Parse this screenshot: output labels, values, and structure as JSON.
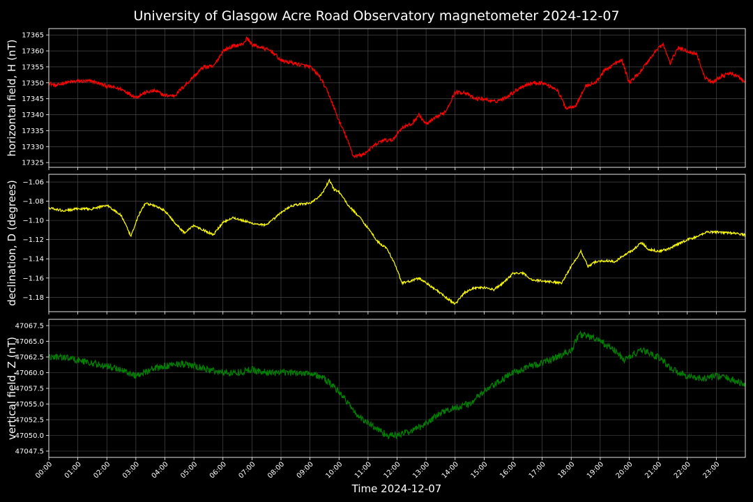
{
  "chart_data": {
    "type": "line",
    "title": "University of Glasgow Acre Road Observatory magnetometer 2024-12-07",
    "xlabel": "Time 2024-12-07",
    "x_ticks": [
      "00:00",
      "01:00",
      "02:00",
      "03:00",
      "04:00",
      "05:00",
      "06:00",
      "07:00",
      "08:00",
      "09:00",
      "10:00",
      "11:00",
      "12:00",
      "13:00",
      "14:00",
      "15:00",
      "16:00",
      "17:00",
      "18:00",
      "19:00",
      "20:00",
      "21:00",
      "22:00",
      "23:00"
    ],
    "xlim": [
      "00:00",
      "24:00"
    ],
    "grid": true,
    "panels": [
      {
        "ylabel": "horizontal field, H (nT)",
        "color": "#ff0000",
        "ylim": [
          17323.5,
          17367
        ],
        "yticks": [
          17325,
          17330,
          17335,
          17340,
          17345,
          17350,
          17355,
          17360,
          17365
        ],
        "tick_labels": [
          "17325",
          "17330",
          "17335",
          "17340",
          "17345",
          "17350",
          "17355",
          "17360",
          "17365"
        ],
        "noise": 0.6,
        "series": [
          {
            "x": "00:00",
            "y": 17350
          },
          {
            "x": "00:15",
            "y": 17349
          },
          {
            "x": "00:30",
            "y": 17350
          },
          {
            "x": "01:00",
            "y": 17350.5
          },
          {
            "x": "01:30",
            "y": 17350.5
          },
          {
            "x": "02:00",
            "y": 17349
          },
          {
            "x": "02:30",
            "y": 17348
          },
          {
            "x": "03:00",
            "y": 17345.5
          },
          {
            "x": "03:20",
            "y": 17347
          },
          {
            "x": "03:40",
            "y": 17347.5
          },
          {
            "x": "04:00",
            "y": 17346
          },
          {
            "x": "04:20",
            "y": 17346
          },
          {
            "x": "04:40",
            "y": 17349
          },
          {
            "x": "05:00",
            "y": 17352
          },
          {
            "x": "05:20",
            "y": 17355
          },
          {
            "x": "05:40",
            "y": 17355
          },
          {
            "x": "06:00",
            "y": 17360
          },
          {
            "x": "06:20",
            "y": 17361.5
          },
          {
            "x": "06:40",
            "y": 17362
          },
          {
            "x": "06:50",
            "y": 17364
          },
          {
            "x": "07:00",
            "y": 17362
          },
          {
            "x": "07:20",
            "y": 17361
          },
          {
            "x": "07:40",
            "y": 17360
          },
          {
            "x": "08:00",
            "y": 17357
          },
          {
            "x": "08:30",
            "y": 17356
          },
          {
            "x": "09:00",
            "y": 17355
          },
          {
            "x": "09:20",
            "y": 17352
          },
          {
            "x": "09:40",
            "y": 17346
          },
          {
            "x": "10:00",
            "y": 17338
          },
          {
            "x": "10:15",
            "y": 17333
          },
          {
            "x": "10:30",
            "y": 17327
          },
          {
            "x": "10:50",
            "y": 17327.5
          },
          {
            "x": "11:10",
            "y": 17330
          },
          {
            "x": "11:30",
            "y": 17332
          },
          {
            "x": "11:50",
            "y": 17332
          },
          {
            "x": "12:10",
            "y": 17336
          },
          {
            "x": "12:30",
            "y": 17337
          },
          {
            "x": "12:45",
            "y": 17340
          },
          {
            "x": "13:00",
            "y": 17337
          },
          {
            "x": "13:20",
            "y": 17339
          },
          {
            "x": "13:40",
            "y": 17341
          },
          {
            "x": "14:00",
            "y": 17347
          },
          {
            "x": "14:20",
            "y": 17347
          },
          {
            "x": "14:40",
            "y": 17345
          },
          {
            "x": "15:00",
            "y": 17345
          },
          {
            "x": "15:20",
            "y": 17344
          },
          {
            "x": "15:40",
            "y": 17345
          },
          {
            "x": "16:00",
            "y": 17347
          },
          {
            "x": "16:20",
            "y": 17349
          },
          {
            "x": "16:40",
            "y": 17350
          },
          {
            "x": "17:00",
            "y": 17350
          },
          {
            "x": "17:30",
            "y": 17348
          },
          {
            "x": "17:50",
            "y": 17342
          },
          {
            "x": "18:10",
            "y": 17343
          },
          {
            "x": "18:30",
            "y": 17349
          },
          {
            "x": "18:50",
            "y": 17350
          },
          {
            "x": "19:10",
            "y": 17354
          },
          {
            "x": "19:30",
            "y": 17356
          },
          {
            "x": "19:45",
            "y": 17357
          },
          {
            "x": "20:00",
            "y": 17350
          },
          {
            "x": "20:20",
            "y": 17353
          },
          {
            "x": "20:40",
            "y": 17357
          },
          {
            "x": "21:00",
            "y": 17361
          },
          {
            "x": "21:10",
            "y": 17362
          },
          {
            "x": "21:25",
            "y": 17356
          },
          {
            "x": "21:40",
            "y": 17361
          },
          {
            "x": "22:00",
            "y": 17360
          },
          {
            "x": "22:20",
            "y": 17359
          },
          {
            "x": "22:35",
            "y": 17352
          },
          {
            "x": "22:50",
            "y": 17350
          },
          {
            "x": "23:10",
            "y": 17352
          },
          {
            "x": "23:30",
            "y": 17353
          },
          {
            "x": "23:45",
            "y": 17352
          },
          {
            "x": "24:00",
            "y": 17350
          }
        ]
      },
      {
        "ylabel": "declination, D (degrees)",
        "color": "#ffff00",
        "ylim": [
          -1.195,
          -1.052
        ],
        "yticks": [
          -1.18,
          -1.16,
          -1.14,
          -1.12,
          -1.1,
          -1.08,
          -1.06
        ],
        "tick_labels": [
          "−1.18",
          "−1.16",
          "−1.14",
          "−1.12",
          "−1.10",
          "−1.08",
          "−1.06"
        ],
        "noise": 0.0012,
        "series": [
          {
            "x": "00:00",
            "y": -1.087
          },
          {
            "x": "00:30",
            "y": -1.09
          },
          {
            "x": "01:00",
            "y": -1.088
          },
          {
            "x": "01:30",
            "y": -1.088
          },
          {
            "x": "02:00",
            "y": -1.084
          },
          {
            "x": "02:30",
            "y": -1.095
          },
          {
            "x": "02:50",
            "y": -1.117
          },
          {
            "x": "03:05",
            "y": -1.095
          },
          {
            "x": "03:20",
            "y": -1.082
          },
          {
            "x": "03:40",
            "y": -1.085
          },
          {
            "x": "04:00",
            "y": -1.09
          },
          {
            "x": "04:20",
            "y": -1.102
          },
          {
            "x": "04:40",
            "y": -1.113
          },
          {
            "x": "05:00",
            "y": -1.105
          },
          {
            "x": "05:20",
            "y": -1.11
          },
          {
            "x": "05:40",
            "y": -1.115
          },
          {
            "x": "06:00",
            "y": -1.102
          },
          {
            "x": "06:20",
            "y": -1.097
          },
          {
            "x": "06:40",
            "y": -1.1
          },
          {
            "x": "07:00",
            "y": -1.103
          },
          {
            "x": "07:30",
            "y": -1.105
          },
          {
            "x": "08:00",
            "y": -1.092
          },
          {
            "x": "08:20",
            "y": -1.085
          },
          {
            "x": "08:40",
            "y": -1.083
          },
          {
            "x": "09:00",
            "y": -1.082
          },
          {
            "x": "09:20",
            "y": -1.075
          },
          {
            "x": "09:30",
            "y": -1.068
          },
          {
            "x": "09:40",
            "y": -1.058
          },
          {
            "x": "09:50",
            "y": -1.068
          },
          {
            "x": "10:00",
            "y": -1.07
          },
          {
            "x": "10:20",
            "y": -1.085
          },
          {
            "x": "10:40",
            "y": -1.095
          },
          {
            "x": "11:00",
            "y": -1.108
          },
          {
            "x": "11:20",
            "y": -1.122
          },
          {
            "x": "11:40",
            "y": -1.13
          },
          {
            "x": "11:55",
            "y": -1.145
          },
          {
            "x": "12:10",
            "y": -1.165
          },
          {
            "x": "12:30",
            "y": -1.163
          },
          {
            "x": "12:45",
            "y": -1.16
          },
          {
            "x": "13:00",
            "y": -1.165
          },
          {
            "x": "13:20",
            "y": -1.172
          },
          {
            "x": "13:40",
            "y": -1.18
          },
          {
            "x": "14:00",
            "y": -1.187
          },
          {
            "x": "14:20",
            "y": -1.175
          },
          {
            "x": "14:40",
            "y": -1.17
          },
          {
            "x": "15:00",
            "y": -1.17
          },
          {
            "x": "15:20",
            "y": -1.172
          },
          {
            "x": "15:40",
            "y": -1.165
          },
          {
            "x": "16:00",
            "y": -1.155
          },
          {
            "x": "16:20",
            "y": -1.155
          },
          {
            "x": "16:40",
            "y": -1.162
          },
          {
            "x": "17:00",
            "y": -1.163
          },
          {
            "x": "17:20",
            "y": -1.164
          },
          {
            "x": "17:40",
            "y": -1.165
          },
          {
            "x": "18:00",
            "y": -1.148
          },
          {
            "x": "18:10",
            "y": -1.14
          },
          {
            "x": "18:20",
            "y": -1.132
          },
          {
            "x": "18:35",
            "y": -1.148
          },
          {
            "x": "18:50",
            "y": -1.143
          },
          {
            "x": "19:10",
            "y": -1.142
          },
          {
            "x": "19:30",
            "y": -1.143
          },
          {
            "x": "19:50",
            "y": -1.136
          },
          {
            "x": "20:10",
            "y": -1.13
          },
          {
            "x": "20:25",
            "y": -1.123
          },
          {
            "x": "20:40",
            "y": -1.13
          },
          {
            "x": "21:00",
            "y": -1.132
          },
          {
            "x": "21:20",
            "y": -1.13
          },
          {
            "x": "21:40",
            "y": -1.125
          },
          {
            "x": "22:00",
            "y": -1.12
          },
          {
            "x": "22:20",
            "y": -1.117
          },
          {
            "x": "22:40",
            "y": -1.112
          },
          {
            "x": "23:00",
            "y": -1.112
          },
          {
            "x": "23:30",
            "y": -1.113
          },
          {
            "x": "24:00",
            "y": -1.115
          }
        ]
      },
      {
        "ylabel": "vertical field, Z (nT)",
        "color": "#008000",
        "ylim": [
          47046.5,
          47068.5
        ],
        "yticks": [
          47047.5,
          47050,
          47052.5,
          47055,
          47057.5,
          47060,
          47062.5,
          47065,
          47067.5
        ],
        "tick_labels": [
          "47047.5",
          "47050.0",
          "47052.5",
          "47055.0",
          "47057.5",
          "47060.0",
          "47062.5",
          "47065.0",
          "47067.5"
        ],
        "noise": 0.55,
        "series": [
          {
            "x": "00:00",
            "y": 47062.5
          },
          {
            "x": "00:30",
            "y": 47062.5
          },
          {
            "x": "01:00",
            "y": 47062
          },
          {
            "x": "01:30",
            "y": 47061.5
          },
          {
            "x": "02:00",
            "y": 47061
          },
          {
            "x": "02:30",
            "y": 47060.5
          },
          {
            "x": "03:00",
            "y": 47059.5
          },
          {
            "x": "03:30",
            "y": 47060.5
          },
          {
            "x": "04:00",
            "y": 47061
          },
          {
            "x": "04:30",
            "y": 47061.5
          },
          {
            "x": "05:00",
            "y": 47061
          },
          {
            "x": "05:30",
            "y": 47060.5
          },
          {
            "x": "06:00",
            "y": 47060
          },
          {
            "x": "06:30",
            "y": 47060
          },
          {
            "x": "07:00",
            "y": 47060.5
          },
          {
            "x": "07:30",
            "y": 47060
          },
          {
            "x": "08:00",
            "y": 47060
          },
          {
            "x": "08:30",
            "y": 47060
          },
          {
            "x": "09:00",
            "y": 47060
          },
          {
            "x": "09:30",
            "y": 47059
          },
          {
            "x": "10:00",
            "y": 47057
          },
          {
            "x": "10:20",
            "y": 47055
          },
          {
            "x": "10:40",
            "y": 47053
          },
          {
            "x": "11:00",
            "y": 47052
          },
          {
            "x": "11:20",
            "y": 47051
          },
          {
            "x": "11:40",
            "y": 47050
          },
          {
            "x": "12:00",
            "y": 47050
          },
          {
            "x": "12:20",
            "y": 47050.5
          },
          {
            "x": "12:40",
            "y": 47051
          },
          {
            "x": "13:00",
            "y": 47052
          },
          {
            "x": "13:30",
            "y": 47053.5
          },
          {
            "x": "14:00",
            "y": 47054.5
          },
          {
            "x": "14:30",
            "y": 47055
          },
          {
            "x": "15:00",
            "y": 47057
          },
          {
            "x": "15:30",
            "y": 47058.5
          },
          {
            "x": "16:00",
            "y": 47060
          },
          {
            "x": "16:30",
            "y": 47061
          },
          {
            "x": "17:00",
            "y": 47061.5
          },
          {
            "x": "17:30",
            "y": 47062.5
          },
          {
            "x": "18:00",
            "y": 47063.5
          },
          {
            "x": "18:15",
            "y": 47066
          },
          {
            "x": "18:30",
            "y": 47066
          },
          {
            "x": "19:00",
            "y": 47065
          },
          {
            "x": "19:30",
            "y": 47063.5
          },
          {
            "x": "19:50",
            "y": 47062
          },
          {
            "x": "20:10",
            "y": 47063
          },
          {
            "x": "20:30",
            "y": 47063.5
          },
          {
            "x": "21:00",
            "y": 47062.5
          },
          {
            "x": "21:30",
            "y": 47060.5
          },
          {
            "x": "22:00",
            "y": 47059.5
          },
          {
            "x": "22:30",
            "y": 47059
          },
          {
            "x": "23:00",
            "y": 47059.5
          },
          {
            "x": "23:30",
            "y": 47059
          },
          {
            "x": "24:00",
            "y": 47058
          }
        ]
      }
    ]
  }
}
